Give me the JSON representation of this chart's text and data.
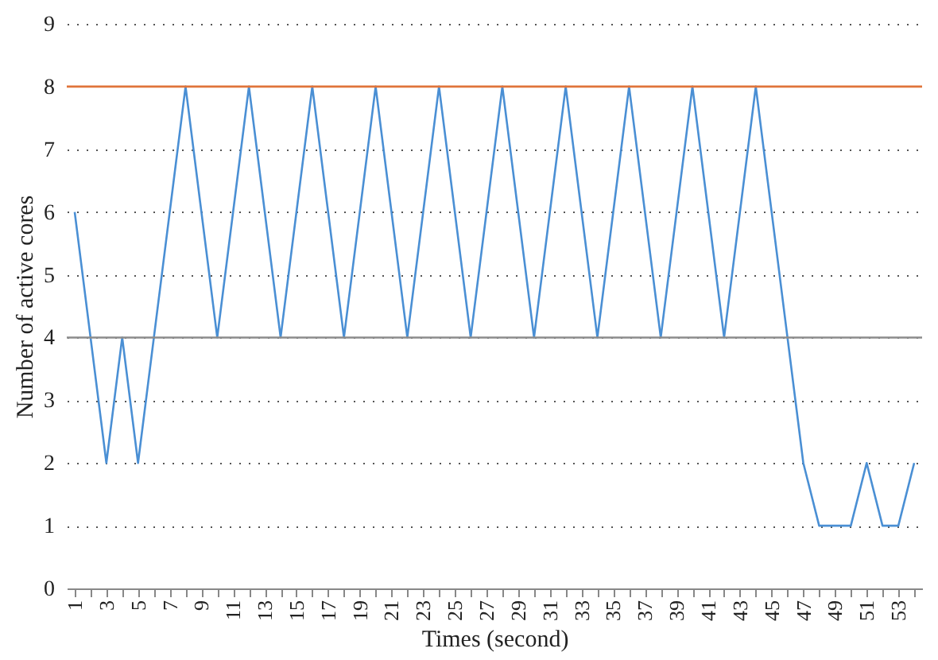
{
  "chart_data": {
    "type": "line",
    "xlabel": "Times (second)",
    "ylabel": "Number of active cores",
    "categories": [
      "1",
      null,
      "3",
      null,
      "5",
      null,
      "7",
      null,
      "9",
      null,
      "11",
      null,
      "13",
      null,
      "15",
      null,
      "17",
      null,
      "19",
      null,
      "21",
      null,
      "23",
      null,
      "25",
      null,
      "27",
      null,
      "29",
      null,
      "31",
      null,
      "33",
      null,
      "35",
      null,
      "37",
      null,
      "39",
      null,
      "41",
      null,
      "43",
      null,
      "45",
      null,
      "47",
      null,
      "49",
      null,
      "51",
      null,
      "53",
      null
    ],
    "series": [
      {
        "color": "#4a8fd4",
        "values": [
          6,
          4,
          2,
          4,
          2,
          4,
          6,
          8,
          6,
          4,
          6,
          8,
          6,
          4,
          6,
          8,
          6,
          4,
          6,
          8,
          6,
          4,
          6,
          8,
          6,
          4,
          6,
          8,
          6,
          4,
          6,
          8,
          6,
          4,
          6,
          8,
          6,
          4,
          6,
          8,
          6,
          4,
          6,
          8,
          6,
          4,
          2,
          1,
          1,
          1,
          2,
          1,
          1,
          2
        ]
      }
    ],
    "ylim": [
      0,
      9
    ],
    "yticks": [
      0,
      1,
      2,
      3,
      4,
      5,
      6,
      7,
      8,
      9
    ],
    "grid": "y",
    "ref_lines": [
      {
        "axis": "y",
        "value": 8,
        "color": "#e0743a"
      },
      {
        "axis": "y",
        "value": 4,
        "color": "#8c8c8c"
      }
    ]
  }
}
